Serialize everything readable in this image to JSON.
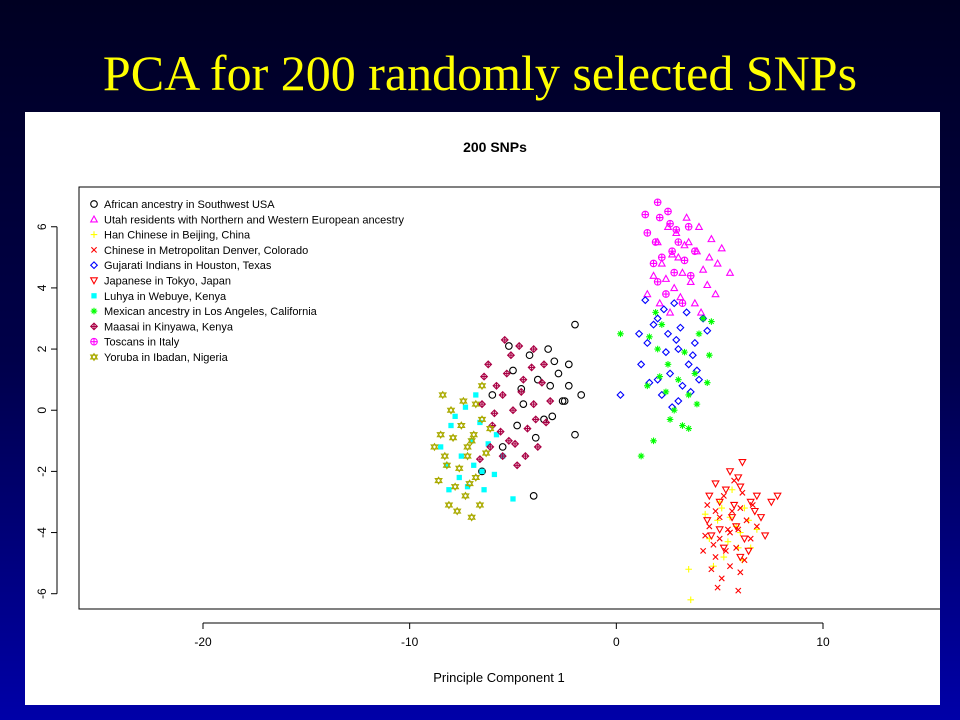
{
  "slide": {
    "title": "PCA for 200 randomly selected SNPs"
  },
  "chart_data": {
    "type": "scatter",
    "title": "200 SNPs",
    "xlabel": "Principle Component 1",
    "ylabel": "",
    "xlim": [
      -26,
      16
    ],
    "ylim": [
      -6.5,
      7.3
    ],
    "x_ticks": [
      -20,
      -10,
      0,
      10
    ],
    "x_tick_labels": [
      "-20",
      "-10",
      "0",
      "10"
    ],
    "y_ticks": [
      -6,
      -4,
      -2,
      0,
      2,
      4,
      6
    ],
    "y_tick_labels": [
      "-6",
      "-4",
      "-2",
      "0",
      "2",
      "4",
      "6"
    ],
    "grid": false,
    "legend_position": "top-left",
    "series": [
      {
        "name": "African ancestry in Southwest USA",
        "marker": "circle",
        "color": "#000000",
        "points": [
          [
            -2,
            2.8
          ],
          [
            -2.3,
            1.5
          ],
          [
            -2.8,
            1.2
          ],
          [
            -1.7,
            0.5
          ],
          [
            -2.5,
            0.3
          ],
          [
            -3.2,
            0.8
          ],
          [
            -3.5,
            -0.3
          ],
          [
            -4,
            -2.8
          ],
          [
            -2,
            -0.8
          ],
          [
            -3,
            1.6
          ],
          [
            -3.8,
            1.0
          ],
          [
            -2.6,
            0.3
          ],
          [
            -4.5,
            0.2
          ],
          [
            -5,
            1.3
          ],
          [
            -4.2,
            1.8
          ],
          [
            -6.5,
            -2.0
          ],
          [
            -5.5,
            -1.2
          ],
          [
            -6,
            0.5
          ],
          [
            -3.3,
            2.0
          ],
          [
            -4.8,
            -0.5
          ],
          [
            -3.1,
            -0.2
          ],
          [
            -2.3,
            0.8
          ],
          [
            -5.2,
            2.1
          ],
          [
            -4.6,
            0.7
          ],
          [
            -3.9,
            -0.9
          ]
        ]
      },
      {
        "name": "Utah residents with Northern and Western European ancestry",
        "marker": "triangle-up",
        "color": "#ff00ff",
        "points": [
          [
            2,
            5.5
          ],
          [
            2.5,
            6
          ],
          [
            3,
            5
          ],
          [
            3.5,
            5.5
          ],
          [
            4,
            6
          ],
          [
            3.2,
            4.5
          ],
          [
            2.8,
            4
          ],
          [
            4.5,
            5
          ],
          [
            5.5,
            4.5
          ],
          [
            4.8,
            3.8
          ],
          [
            3.8,
            3.5
          ],
          [
            2.2,
            4.8
          ],
          [
            1.5,
            3.8
          ],
          [
            2.6,
            3.2
          ],
          [
            3.6,
            4.2
          ],
          [
            4.2,
            4.6
          ],
          [
            2.9,
            5.8
          ],
          [
            3.4,
            6.3
          ],
          [
            4.6,
            5.6
          ],
          [
            2.4,
            4.3
          ],
          [
            3.9,
            5.2
          ],
          [
            4.4,
            4.1
          ],
          [
            1.8,
            4.4
          ],
          [
            3.1,
            3.7
          ],
          [
            4.9,
            4.8
          ],
          [
            3.3,
            5.4
          ],
          [
            2.7,
            5.1
          ],
          [
            4.1,
            3.2
          ],
          [
            5.1,
            5.3
          ],
          [
            2.1,
            3.5
          ]
        ]
      },
      {
        "name": "Han Chinese in Beijing, China",
        "marker": "plus",
        "color": "#ffff00",
        "points": [
          [
            5,
            -3
          ],
          [
            5.5,
            -3.5
          ],
          [
            6,
            -4
          ],
          [
            4.5,
            -4.2
          ],
          [
            5.2,
            -4.8
          ],
          [
            6.2,
            -3.2
          ],
          [
            3.5,
            -5.2
          ],
          [
            3.6,
            -6.2
          ],
          [
            6.5,
            -4.5
          ],
          [
            5.8,
            -3.8
          ],
          [
            4.9,
            -3.6
          ],
          [
            5.4,
            -4.3
          ],
          [
            6.8,
            -3.9
          ],
          [
            4.3,
            -3.4
          ],
          [
            5.6,
            -2.6
          ],
          [
            6.1,
            -4.9
          ],
          [
            4.7,
            -5.1
          ],
          [
            5.1,
            -3.2
          ],
          [
            5.9,
            -4.5
          ],
          [
            6.4,
            -3.6
          ]
        ]
      },
      {
        "name": "Chinese in Metropolitan Denver, Colorado",
        "marker": "cross",
        "color": "#ff0000",
        "points": [
          [
            5,
            -3.5
          ],
          [
            5.5,
            -4
          ],
          [
            6,
            -3.2
          ],
          [
            4.5,
            -3.8
          ],
          [
            5.8,
            -4.5
          ],
          [
            6.3,
            -3.6
          ],
          [
            4.8,
            -4.8
          ],
          [
            5.2,
            -2.8
          ],
          [
            4.6,
            -5.2
          ],
          [
            5.9,
            -5.9
          ],
          [
            6.5,
            -4.2
          ],
          [
            4.3,
            -4.1
          ],
          [
            5.4,
            -3.9
          ],
          [
            6.1,
            -2.7
          ],
          [
            5.1,
            -5.5
          ],
          [
            4.7,
            -4.4
          ],
          [
            5.6,
            -3.3
          ],
          [
            6.8,
            -3.8
          ],
          [
            4.4,
            -3.1
          ],
          [
            5.3,
            -4.6
          ],
          [
            5.7,
            -2.3
          ],
          [
            4.9,
            -5.8
          ],
          [
            6.2,
            -4.9
          ],
          [
            4.2,
            -4.6
          ],
          [
            5.5,
            -5.1
          ],
          [
            6.6,
            -3.1
          ],
          [
            4.8,
            -3.3
          ],
          [
            5.9,
            -3.9
          ],
          [
            5.0,
            -4.2
          ],
          [
            6.0,
            -5.3
          ]
        ]
      },
      {
        "name": "Gujarati Indians in Houston, Texas",
        "marker": "diamond",
        "color": "#0000ff",
        "points": [
          [
            2,
            3
          ],
          [
            2.5,
            2.5
          ],
          [
            3,
            2
          ],
          [
            3.5,
            1.5
          ],
          [
            4,
            1
          ],
          [
            2.8,
            3.5
          ],
          [
            3.2,
            0.8
          ],
          [
            1.5,
            2.2
          ],
          [
            1.2,
            1.5
          ],
          [
            2.2,
            0.5
          ],
          [
            0.2,
            0.5
          ],
          [
            3.8,
            2.2
          ],
          [
            4.2,
            3.0
          ],
          [
            2.6,
            1.2
          ],
          [
            3.4,
            3.2
          ],
          [
            1.8,
            2.8
          ],
          [
            3.0,
            0.3
          ],
          [
            2.4,
            1.9
          ],
          [
            3.6,
            0.6
          ],
          [
            1.4,
            3.6
          ],
          [
            4.4,
            2.6
          ],
          [
            2.0,
            1.0
          ],
          [
            3.1,
            2.7
          ],
          [
            2.7,
            0.1
          ],
          [
            1.6,
            0.9
          ],
          [
            3.7,
            1.8
          ],
          [
            2.3,
            3.3
          ],
          [
            3.9,
            1.3
          ],
          [
            2.9,
            2.3
          ],
          [
            1.1,
            2.5
          ]
        ]
      },
      {
        "name": "Japanese in Tokyo, Japan",
        "marker": "triangle-down",
        "color": "#ff0000",
        "points": [
          [
            5.5,
            -2
          ],
          [
            6,
            -2.5
          ],
          [
            5,
            -3
          ],
          [
            6.5,
            -3
          ],
          [
            7,
            -3.5
          ],
          [
            5.8,
            -3.8
          ],
          [
            4.5,
            -2.8
          ],
          [
            6.2,
            -4.2
          ],
          [
            5.2,
            -4.5
          ],
          [
            6.8,
            -2.8
          ],
          [
            7.5,
            -3
          ],
          [
            6.1,
            -1.7
          ],
          [
            4.8,
            -2.4
          ],
          [
            5.6,
            -3.5
          ],
          [
            6.4,
            -4.6
          ],
          [
            5.0,
            -3.9
          ],
          [
            7.2,
            -4.1
          ],
          [
            5.9,
            -2.2
          ],
          [
            4.6,
            -4.1
          ],
          [
            6.7,
            -3.3
          ],
          [
            5.3,
            -2.6
          ],
          [
            6.0,
            -4.8
          ],
          [
            7.8,
            -2.8
          ],
          [
            5.7,
            -3.1
          ],
          [
            4.4,
            -3.6
          ]
        ]
      },
      {
        "name": "Luhya in Webuye, Kenya",
        "marker": "square",
        "color": "#00ffff",
        "points": [
          [
            -7,
            -1
          ],
          [
            -7.5,
            -1.5
          ],
          [
            -8,
            -0.5
          ],
          [
            -6.5,
            -2
          ],
          [
            -7.2,
            -2.5
          ],
          [
            -8.2,
            -1.8
          ],
          [
            -6.8,
            0.5
          ],
          [
            -5.5,
            -1.5
          ],
          [
            -5,
            -2.9
          ],
          [
            -7.8,
            -0.2
          ],
          [
            -6.2,
            -1.1
          ],
          [
            -7.6,
            -2.2
          ],
          [
            -5.8,
            -0.8
          ],
          [
            -6.9,
            -1.8
          ],
          [
            -8.5,
            -1.2
          ],
          [
            -6.4,
            -2.6
          ],
          [
            -7.3,
            0.1
          ],
          [
            -5.9,
            -2.1
          ],
          [
            -8.1,
            -2.6
          ],
          [
            -6.6,
            -0.4
          ]
        ]
      },
      {
        "name": "Mexican ancestry in Los Angeles, California",
        "marker": "asterisk",
        "color": "#00ff00",
        "points": [
          [
            2,
            2
          ],
          [
            2.5,
            1.5
          ],
          [
            3,
            1
          ],
          [
            3.5,
            0.5
          ],
          [
            2.8,
            0
          ],
          [
            3.2,
            -0.5
          ],
          [
            1.5,
            0.8
          ],
          [
            0.2,
            2.5
          ],
          [
            1.8,
            -1
          ],
          [
            3.5,
            -0.6
          ],
          [
            4,
            2.5
          ],
          [
            4.5,
            1.8
          ],
          [
            2.2,
            2.8
          ],
          [
            1.2,
            -1.5
          ],
          [
            2.6,
            -0.3
          ],
          [
            3.8,
            1.2
          ],
          [
            4.2,
            3
          ],
          [
            2.4,
            0.6
          ],
          [
            3.9,
            0.2
          ],
          [
            1.9,
            3.2
          ],
          [
            4.6,
            2.9
          ],
          [
            2.1,
            1.1
          ],
          [
            3.3,
            1.9
          ],
          [
            1.6,
            2.4
          ],
          [
            4.4,
            0.9
          ]
        ]
      },
      {
        "name": "Maasai in Kinyawa, Kenya",
        "marker": "diamond-plus",
        "color": "#aa0044",
        "points": [
          [
            -5,
            0
          ],
          [
            -5.5,
            0.5
          ],
          [
            -6,
            -0.5
          ],
          [
            -4.5,
            1
          ],
          [
            -4,
            0.2
          ],
          [
            -5.2,
            -1
          ],
          [
            -6.2,
            1.5
          ],
          [
            -3.5,
            1.5
          ],
          [
            -4,
            2
          ],
          [
            -5.5,
            -1.5
          ],
          [
            -4.8,
            -1.8
          ],
          [
            -3.2,
            0.3
          ],
          [
            -5.8,
            0.8
          ],
          [
            -6.5,
            0.2
          ],
          [
            -4.3,
            -0.6
          ],
          [
            -5.1,
            1.8
          ],
          [
            -3.8,
            -1.2
          ],
          [
            -6.1,
            -1.2
          ],
          [
            -4.6,
            0.6
          ],
          [
            -5.4,
            2.3
          ],
          [
            -3.4,
            -0.4
          ],
          [
            -4.1,
            1.4
          ],
          [
            -5.9,
            -0.1
          ],
          [
            -4.9,
            -1.1
          ],
          [
            -6.4,
            1.1
          ],
          [
            -3.6,
            0.9
          ],
          [
            -5.6,
            -0.7
          ],
          [
            -4.4,
            -1.5
          ],
          [
            -5.3,
            1.2
          ],
          [
            -3.9,
            -0.3
          ],
          [
            -6.6,
            -1.6
          ],
          [
            -4.7,
            2.1
          ]
        ]
      },
      {
        "name": "Toscans in Italy",
        "marker": "circle-plus",
        "color": "#ff00ff",
        "points": [
          [
            2,
            6.8
          ],
          [
            2.5,
            6.5
          ],
          [
            3,
            5.5
          ],
          [
            2.2,
            5
          ],
          [
            2.8,
            4.5
          ],
          [
            3.5,
            6
          ],
          [
            1.5,
            5.8
          ],
          [
            2,
            4.2
          ],
          [
            3.2,
            3.5
          ],
          [
            2.6,
            6.1
          ],
          [
            3.8,
            5.2
          ],
          [
            1.8,
            4.8
          ],
          [
            2.9,
            5.9
          ],
          [
            2.4,
            3.8
          ],
          [
            3.3,
            4.9
          ],
          [
            1.4,
            6.4
          ],
          [
            2.7,
            5.2
          ],
          [
            2.1,
            6.3
          ],
          [
            3.6,
            4.4
          ],
          [
            1.9,
            5.5
          ]
        ]
      },
      {
        "name": "Yoruba in Ibadan, Nigeria",
        "marker": "star-of-david",
        "color": "#aaaa00",
        "points": [
          [
            -8,
            0
          ],
          [
            -7.5,
            -0.5
          ],
          [
            -7,
            -1
          ],
          [
            -8.5,
            -0.8
          ],
          [
            -7.2,
            -1.5
          ],
          [
            -6.5,
            -0.3
          ],
          [
            -8.2,
            -1.8
          ],
          [
            -7.8,
            -2.5
          ],
          [
            -6.8,
            -2.2
          ],
          [
            -7,
            -3.5
          ],
          [
            -8.8,
            -1.2
          ],
          [
            -6.5,
            0.8
          ],
          [
            -7.3,
            -2.8
          ],
          [
            -8.4,
            0.5
          ],
          [
            -6.9,
            -0.8
          ],
          [
            -7.6,
            -1.9
          ],
          [
            -8.1,
            -3.1
          ],
          [
            -6.3,
            -1.4
          ],
          [
            -7.4,
            0.3
          ],
          [
            -8.6,
            -2.3
          ],
          [
            -7.1,
            -2.4
          ],
          [
            -6.6,
            -3.1
          ],
          [
            -7.9,
            -0.9
          ],
          [
            -8.3,
            -1.5
          ],
          [
            -6.1,
            -0.6
          ],
          [
            -7.7,
            -3.3
          ],
          [
            -6.8,
            0.2
          ],
          [
            -7.2,
            -1.2
          ]
        ]
      }
    ]
  }
}
